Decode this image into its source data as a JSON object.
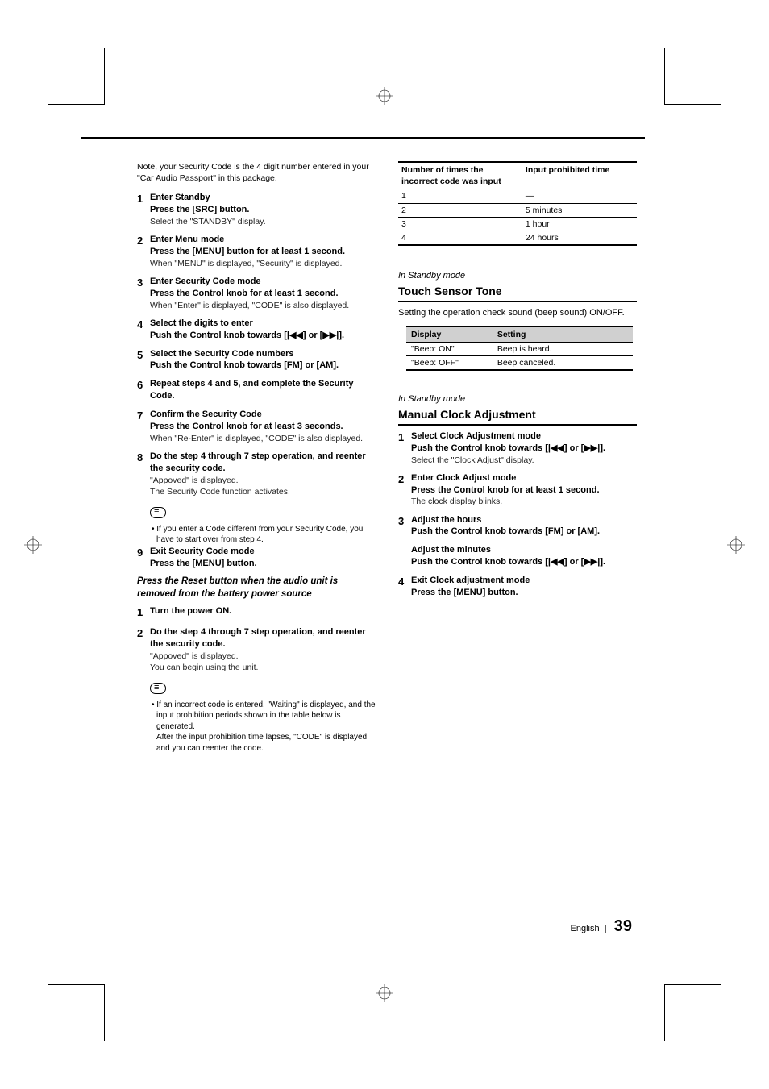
{
  "page": {
    "language": "English",
    "number": "39"
  },
  "left": {
    "note_top": "Note, your Security Code is the 4 digit number entered in your \"Car Audio Passport\" in this package.",
    "steps_a": [
      {
        "n": "1",
        "title": "Enter Standby",
        "action": "Press the [SRC] button.",
        "desc": "Select the \"STANDBY\" display."
      },
      {
        "n": "2",
        "title": "Enter Menu mode",
        "action": "Press the [MENU] button for at least 1 second.",
        "desc": "When \"MENU\" is displayed, \"Security\" is displayed."
      },
      {
        "n": "3",
        "title": "Enter Security Code mode",
        "action": "Press the Control knob for at least 1 second.",
        "desc": "When \"Enter\" is displayed, \"CODE\" is also displayed."
      },
      {
        "n": "4",
        "title": "Select the digits to enter",
        "action": "Push the Control knob towards [|◀◀] or [▶▶|].",
        "desc": ""
      },
      {
        "n": "5",
        "title": "Select the Security Code numbers",
        "action": "Push the Control knob towards [FM] or [AM].",
        "desc": ""
      },
      {
        "n": "6",
        "title": "Repeat steps 4 and 5, and complete the Security Code.",
        "action": "",
        "desc": ""
      },
      {
        "n": "7",
        "title": "Confirm the Security Code",
        "action": "Press the Control knob for at least 3 seconds.",
        "desc": "When \"Re-Enter\" is displayed, \"CODE\" is also displayed."
      },
      {
        "n": "8",
        "title": "Do the step 4 through 7 step operation, and reenter the security code.",
        "action": "",
        "desc": "\"Appoved\" is displayed.\nThe Security Code function activates."
      }
    ],
    "notice1": "If you enter a Code different from your Security Code, you have to start over from step 4.",
    "step9": {
      "n": "9",
      "title": "Exit Security Code mode",
      "action": "Press the [MENU] button."
    },
    "sub_h": "Press the Reset button when the audio unit is removed from the battery power source",
    "steps_b": [
      {
        "n": "1",
        "title": "Turn the power ON.",
        "action": "",
        "desc": ""
      },
      {
        "n": "2",
        "title": "Do the step 4 through 7 step operation, and reenter the security code.",
        "action": "",
        "desc": "\"Appoved\" is displayed.\nYou can begin using the unit."
      }
    ],
    "notice2": "If an incorrect code is entered, \"Waiting\" is displayed, and the input prohibition periods shown in the table below is generated.\nAfter the input prohibition time lapses, \"CODE\" is displayed, and you can reenter the code."
  },
  "right": {
    "table1": {
      "headers": [
        "Number of times the incorrect code was input",
        "Input prohibited time"
      ],
      "rows": [
        [
          "1",
          "—"
        ],
        [
          "2",
          "5 minutes"
        ],
        [
          "3",
          "1 hour"
        ],
        [
          "4",
          "24 hours"
        ]
      ],
      "col_widths": [
        "52%",
        "48%"
      ]
    },
    "section1": {
      "mode": "In Standby mode",
      "title": "Touch Sensor Tone",
      "desc": "Setting the operation check sound (beep sound) ON/OFF.",
      "table": {
        "headers": [
          "Display",
          "Setting"
        ],
        "rows": [
          [
            "\"Beep: ON\"",
            "Beep is heard."
          ],
          [
            "\"Beep: OFF\"",
            "Beep canceled."
          ]
        ],
        "col_widths": [
          "38%",
          "62%"
        ]
      }
    },
    "section2": {
      "mode": "In Standby mode",
      "title": "Manual Clock Adjustment",
      "steps": [
        {
          "n": "1",
          "title": "Select Clock Adjustment mode",
          "action": "Push the Control knob towards [|◀◀] or [▶▶|].",
          "desc": "Select the \"Clock Adjust\" display."
        },
        {
          "n": "2",
          "title": "Enter Clock Adjust mode",
          "action": "Press the Control knob for at least 1 second.",
          "desc": "The clock display blinks."
        },
        {
          "n": "3",
          "title": "Adjust the hours",
          "action": "Push the Control knob towards [FM] or [AM].",
          "desc": "",
          "sub_title": "Adjust the minutes",
          "sub_action": "Push the Control knob towards [|◀◀] or [▶▶|]."
        },
        {
          "n": "4",
          "title": "Exit Clock adjustment mode",
          "action": "Press the [MENU] button.",
          "desc": ""
        }
      ]
    }
  }
}
